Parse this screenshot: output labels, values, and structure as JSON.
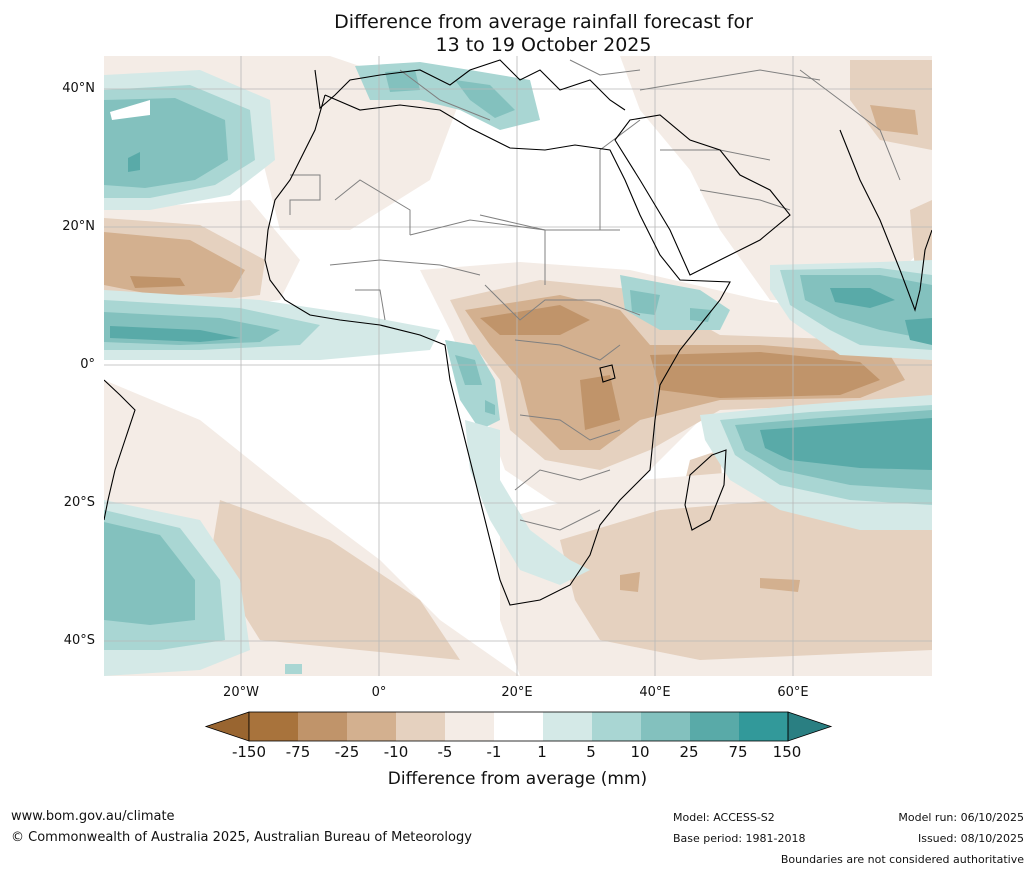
{
  "title": {
    "line1": "Difference from average rainfall forecast for",
    "line2": "13 to 19 October 2025"
  },
  "axes": {
    "lat_labels": [
      "40°N",
      "20°N",
      "0°",
      "20°S",
      "40°S"
    ],
    "lon_labels": [
      "20°W",
      "0°",
      "20°E",
      "40°E",
      "60°E"
    ]
  },
  "legend": {
    "title": "Difference from average (mm)",
    "ticks": [
      "-150",
      "-75",
      "-25",
      "-10",
      "-5",
      "-1",
      "1",
      "5",
      "10",
      "25",
      "75",
      "150"
    ],
    "colors": [
      "#a8733c",
      "#c0946a",
      "#d3b08f",
      "#e5d1bf",
      "#f4ece6",
      "#ffffff",
      "#d4e9e7",
      "#a9d6d3",
      "#83c1be",
      "#59aaa8",
      "#32999a"
    ],
    "under_color": "#996530",
    "over_color": "#2a7f82"
  },
  "footer": {
    "website": "www.bom.gov.au/climate",
    "copyright": "© Commonwealth of Australia 2025, Australian Bureau of Meteorology",
    "model": "Model: ACCESS-S2",
    "base_period": "Base period: 1981-2018",
    "model_run": "Model run: 06/10/2025",
    "issued": "Issued: 08/10/2025",
    "disclaimer": "Boundaries are not considered authoritative"
  }
}
